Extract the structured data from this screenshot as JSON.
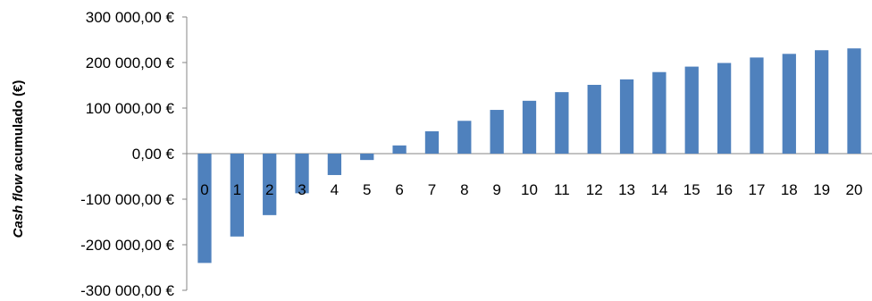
{
  "chart_data": {
    "type": "bar",
    "categories": [
      "0",
      "1",
      "2",
      "3",
      "4",
      "5",
      "6",
      "7",
      "8",
      "9",
      "10",
      "11",
      "12",
      "13",
      "14",
      "15",
      "16",
      "17",
      "18",
      "19",
      "20"
    ],
    "values": [
      -240000,
      -182000,
      -135000,
      -87000,
      -47000,
      -14000,
      18000,
      49000,
      72000,
      96000,
      116000,
      135000,
      151000,
      163000,
      179000,
      191000,
      199000,
      211000,
      219000,
      227000,
      231000
    ],
    "ylabel_italic": "Cash flow",
    "ylabel_rest": " acumulado (€)",
    "ylim": [
      -300000,
      300000
    ],
    "yticks": [
      300000,
      200000,
      100000,
      0,
      -100000,
      -200000,
      -300000
    ],
    "ytick_labels": [
      "300 000,00 €",
      "200 000,00 €",
      "100 000,00 €",
      "0,00 €",
      "-100 000,00 €",
      "-200 000,00 €",
      "-300 000,00 €"
    ],
    "bar_color": "#4F81BD",
    "gridlines": false,
    "legend": "none"
  }
}
